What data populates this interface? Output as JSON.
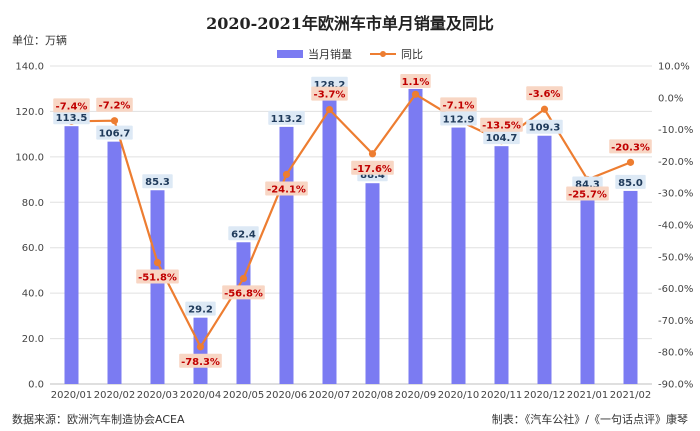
{
  "header": {
    "title": "2020-2021年欧洲车市单月销量及同比",
    "unit": "单位：万辆"
  },
  "legend": {
    "sales": "当月销量",
    "yoy": "同比"
  },
  "footer": {
    "source": "数据来源：欧洲汽车制造协会ACEA",
    "maker": "制表：《汽车公社》/《一句话点评》康琴"
  },
  "colors": {
    "bar": "#7b7bf2",
    "line": "#ed7d31",
    "bar_label_bg": "#dde9f5",
    "pct_label_bg": "#f8d6c4",
    "grid": "#e0e0e0"
  },
  "chart_data": {
    "type": "bar",
    "title": "2020-2021年欧洲车市单月销量及同比",
    "categories": [
      "2020/01",
      "2020/02",
      "2020/03",
      "2020/04",
      "2020/05",
      "2020/06",
      "2020/07",
      "2020/08",
      "2020/09",
      "2020/10",
      "2020/11",
      "2020/12",
      "2021/01",
      "2021/02"
    ],
    "series": [
      {
        "name": "当月销量",
        "type": "bar",
        "axis": "left",
        "values": [
          113.5,
          106.7,
          85.3,
          29.2,
          62.4,
          113.2,
          128.2,
          88.4,
          129.9,
          112.9,
          104.7,
          109.3,
          84.3,
          85.0
        ],
        "labels": [
          "113.5",
          "106.7",
          "85.3",
          "29.2",
          "62.4",
          "113.2",
          "128.2",
          "88.4",
          "",
          "112.9",
          "104.7",
          "109.3",
          "84.3",
          "85.0"
        ]
      },
      {
        "name": "同比",
        "type": "line",
        "axis": "right",
        "values": [
          -7.4,
          -7.2,
          -51.8,
          -78.3,
          -56.8,
          -24.1,
          -3.7,
          -17.6,
          1.1,
          -7.1,
          -13.5,
          -3.6,
          -25.7,
          -20.3
        ],
        "labels": [
          "-7.4%",
          "-7.2%",
          "-51.8%",
          "-78.3%",
          "-56.8%",
          "-24.1%",
          "-3.7%",
          "-17.6%",
          "1.1%",
          "-7.1%",
          "-13.5%",
          "-3.6%",
          "-25.7%",
          "-20.3%"
        ]
      }
    ],
    "y_left": {
      "min": 0,
      "max": 140,
      "ticks": [
        0,
        20,
        40,
        60,
        80,
        100,
        120,
        140
      ],
      "tick_labels": [
        "0.0",
        "20.0",
        "40.0",
        "60.0",
        "80.0",
        "100.0",
        "120.0",
        "140.0"
      ]
    },
    "y_right": {
      "min": -90,
      "max": 10,
      "ticks": [
        10,
        0,
        -10,
        -20,
        -30,
        -40,
        -50,
        -60,
        -70,
        -80,
        -90
      ],
      "tick_labels": [
        "10.0%",
        "0.0%",
        "-10.0%",
        "-20.0%",
        "-30.0%",
        "-40.0%",
        "-50.0%",
        "-60.0%",
        "-70.0%",
        "-80.0%",
        "-90.0%"
      ]
    },
    "grid": true,
    "legend_position": "top"
  }
}
